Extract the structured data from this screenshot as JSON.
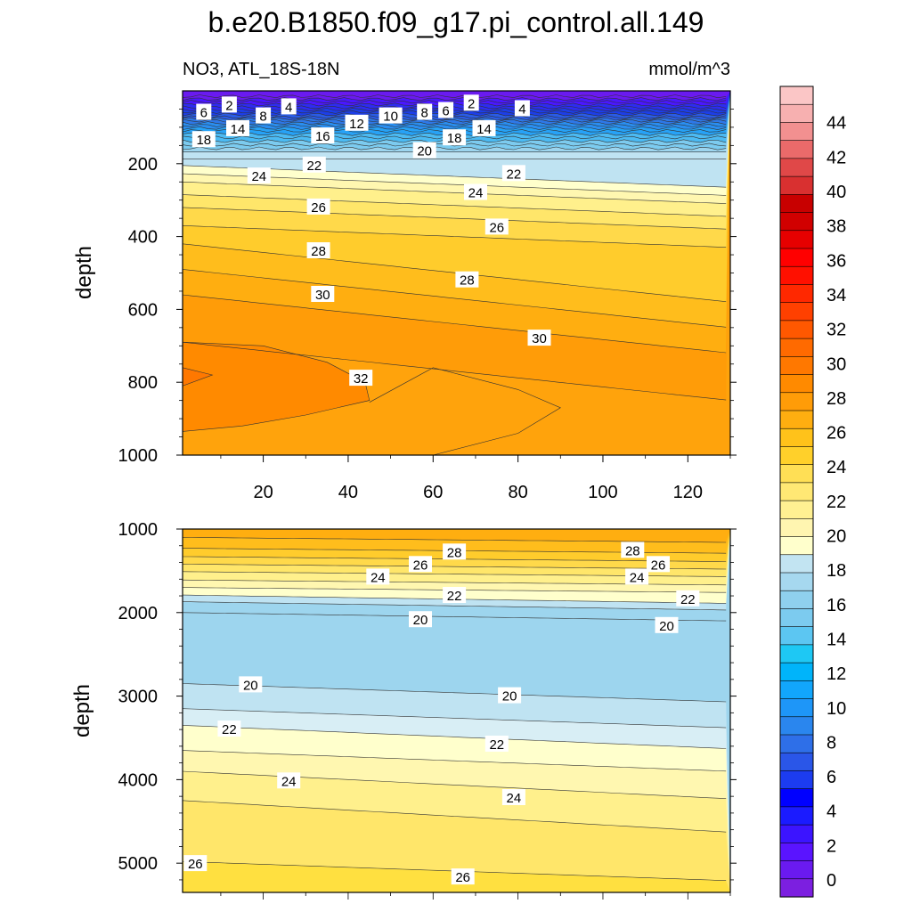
{
  "title": "b.e20.B1850.f09_g17.pi_control.all.149",
  "subtitle_left": "NO3, ATL_18S-18N",
  "subtitle_right": "mmol/m^3",
  "colors": {
    "levels": [
      0,
      2,
      4,
      6,
      8,
      10,
      12,
      14,
      16,
      18,
      20,
      22,
      24,
      26,
      28,
      30,
      32,
      34,
      36,
      38,
      40,
      42,
      44
    ],
    "bands": [
      "#7c1fe0",
      "#6a1af0",
      "#5a14ff",
      "#3c14ff",
      "#1b1bff",
      "#0000ff",
      "#1c3cf0",
      "#2a56e8",
      "#2e6fe8",
      "#2a86ee",
      "#1e96f8",
      "#12a6fc",
      "#00b4fa",
      "#1ec8f4",
      "#5cc6f2",
      "#7ccbef",
      "#8fd0ee",
      "#a6d8ef",
      "#c2e4f2",
      "#ffffcc",
      "#fff5b0",
      "#fff092",
      "#ffe874",
      "#ffdf55",
      "#ffd02a",
      "#ffc21a",
      "#ffae10",
      "#ff9c08",
      "#ff8a00",
      "#ff7800",
      "#ff6a00",
      "#ff5800",
      "#ff4000",
      "#ff2800",
      "#ff1000",
      "#ff0000",
      "#e60000",
      "#d10000",
      "#c80000",
      "#d93030",
      "#e04848",
      "#ea6a6a",
      "#f29090",
      "#f7b0b0",
      "#fbc6c6"
    ]
  },
  "colorbar_labels": [
    "0",
    "2",
    "4",
    "6",
    "8",
    "10",
    "12",
    "14",
    "16",
    "18",
    "20",
    "22",
    "24",
    "26",
    "28",
    "30",
    "32",
    "34",
    "36",
    "38",
    "40",
    "42",
    "44"
  ],
  "chart_data": [
    {
      "type": "contour",
      "panel": "upper",
      "xlabel": "",
      "ylabel": "depth",
      "xlim": [
        1,
        130
      ],
      "ylim": [
        1000,
        0
      ],
      "xticks": [
        20,
        40,
        60,
        80,
        100,
        120
      ],
      "yticks": [
        200,
        400,
        600,
        800,
        1000
      ],
      "contour_labels": [
        {
          "text": "2",
          "x": 12,
          "y": 40
        },
        {
          "text": "4",
          "x": 26,
          "y": 45
        },
        {
          "text": "6",
          "x": 6,
          "y": 60
        },
        {
          "text": "8",
          "x": 20,
          "y": 70
        },
        {
          "text": "14",
          "x": 14,
          "y": 105
        },
        {
          "text": "18",
          "x": 6,
          "y": 135
        },
        {
          "text": "16",
          "x": 34,
          "y": 125
        },
        {
          "text": "12",
          "x": 42,
          "y": 90
        },
        {
          "text": "10",
          "x": 50,
          "y": 70
        },
        {
          "text": "8",
          "x": 58,
          "y": 60
        },
        {
          "text": "6",
          "x": 63,
          "y": 55
        },
        {
          "text": "2",
          "x": 69,
          "y": 35
        },
        {
          "text": "4",
          "x": 81,
          "y": 50
        },
        {
          "text": "14",
          "x": 72,
          "y": 105
        },
        {
          "text": "18",
          "x": 65,
          "y": 130
        },
        {
          "text": "20",
          "x": 58,
          "y": 165
        },
        {
          "text": "22",
          "x": 32,
          "y": 205
        },
        {
          "text": "22",
          "x": 79,
          "y": 228
        },
        {
          "text": "24",
          "x": 19,
          "y": 235
        },
        {
          "text": "24",
          "x": 70,
          "y": 280
        },
        {
          "text": "26",
          "x": 33,
          "y": 320
        },
        {
          "text": "26",
          "x": 75,
          "y": 375
        },
        {
          "text": "28",
          "x": 33,
          "y": 440
        },
        {
          "text": "28",
          "x": 68,
          "y": 520
        },
        {
          "text": "30",
          "x": 34,
          "y": 560
        },
        {
          "text": "30",
          "x": 85,
          "y": 680
        },
        {
          "text": "32",
          "x": 43,
          "y": 790
        }
      ]
    },
    {
      "type": "contour",
      "panel": "lower",
      "xlabel": "",
      "ylabel": "depth",
      "xlim": [
        1,
        130
      ],
      "ylim": [
        5350,
        1000
      ],
      "yticks": [
        1000,
        2000,
        3000,
        4000,
        5000
      ],
      "contour_labels": [
        {
          "text": "28",
          "x": 65,
          "y": 1280
        },
        {
          "text": "28",
          "x": 107,
          "y": 1260
        },
        {
          "text": "26",
          "x": 57,
          "y": 1430
        },
        {
          "text": "26",
          "x": 113,
          "y": 1430
        },
        {
          "text": "24",
          "x": 47,
          "y": 1580
        },
        {
          "text": "24",
          "x": 108,
          "y": 1580
        },
        {
          "text": "22",
          "x": 65,
          "y": 1800
        },
        {
          "text": "22",
          "x": 120,
          "y": 1840
        },
        {
          "text": "20",
          "x": 57,
          "y": 2090
        },
        {
          "text": "20",
          "x": 115,
          "y": 2160
        },
        {
          "text": "20",
          "x": 17,
          "y": 2870
        },
        {
          "text": "20",
          "x": 78,
          "y": 3000
        },
        {
          "text": "22",
          "x": 12,
          "y": 3400
        },
        {
          "text": "22",
          "x": 75,
          "y": 3580
        },
        {
          "text": "24",
          "x": 26,
          "y": 4020
        },
        {
          "text": "24",
          "x": 79,
          "y": 4220
        },
        {
          "text": "26",
          "x": 4,
          "y": 5010
        },
        {
          "text": "26",
          "x": 67,
          "y": 5170
        }
      ]
    }
  ]
}
